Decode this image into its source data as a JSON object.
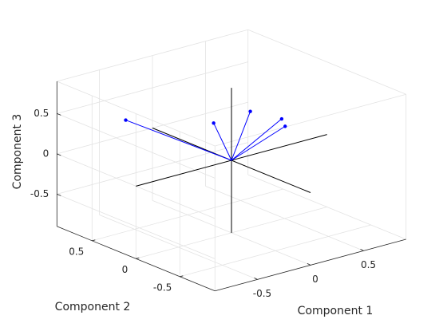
{
  "chart_data": {
    "type": "biplot",
    "xlabel": "Component 1",
    "ylabel": "Component 2",
    "zlabel": "Component 3",
    "xlim": [
      -0.9,
      0.9
    ],
    "ylim": [
      -0.9,
      0.9
    ],
    "zlim": [
      -0.9,
      0.9
    ],
    "xticks": [
      -0.5,
      0,
      0.5
    ],
    "yticks": [
      -0.5,
      0,
      0.5
    ],
    "zticks": [
      -0.5,
      0,
      0.5
    ],
    "grid": true,
    "series": [
      {
        "color": "#0000ff",
        "x": [
          -0.5,
          0.08,
          0.26,
          0.39,
          0.34
        ],
        "y": [
          0.6,
          0.3,
          0.1,
          -0.1,
          -0.2
        ],
        "z": [
          0.41,
          0.3,
          0.47,
          0.42,
          0.39
        ]
      }
    ]
  }
}
